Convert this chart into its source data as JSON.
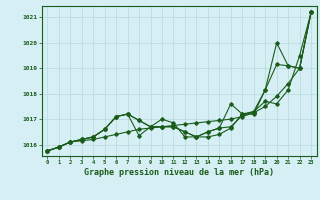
{
  "xlabel": "Graphe pression niveau de la mer (hPa)",
  "background_color": "#d6eff5",
  "grid_color": "#b8d8df",
  "line_color": "#1a5c1a",
  "xlim": [
    -0.5,
    23.5
  ],
  "ylim": [
    1015.55,
    1021.45
  ],
  "yticks": [
    1016,
    1017,
    1018,
    1019,
    1020,
    1021
  ],
  "xticks": [
    0,
    1,
    2,
    3,
    4,
    5,
    6,
    7,
    8,
    9,
    10,
    11,
    12,
    13,
    14,
    15,
    16,
    17,
    18,
    19,
    20,
    21,
    22,
    23
  ],
  "line1": [
    1015.75,
    1015.9,
    1016.1,
    1016.15,
    1016.2,
    1016.3,
    1016.4,
    1016.5,
    1016.6,
    1016.65,
    1016.7,
    1016.75,
    1016.8,
    1016.85,
    1016.9,
    1016.95,
    1017.0,
    1017.1,
    1017.25,
    1017.5,
    1017.9,
    1018.4,
    1019.0,
    1021.2
  ],
  "line2": [
    1015.75,
    1015.9,
    1016.1,
    1016.2,
    1016.3,
    1016.6,
    1017.1,
    1017.2,
    1016.95,
    1016.7,
    1016.7,
    1016.7,
    1016.5,
    1016.3,
    1016.5,
    1016.65,
    1016.7,
    1017.15,
    1017.3,
    1017.7,
    1017.6,
    1018.15,
    1019.5,
    1021.2
  ],
  "line3": [
    1015.75,
    1015.9,
    1016.1,
    1016.2,
    1016.3,
    1016.6,
    1017.1,
    1017.2,
    1016.35,
    1016.7,
    1017.0,
    1016.85,
    1016.3,
    1016.3,
    1016.3,
    1016.4,
    1016.65,
    1017.2,
    1017.2,
    1018.15,
    1019.15,
    1019.1,
    1019.0,
    1021.2
  ],
  "line4": [
    1015.75,
    1015.9,
    1016.1,
    1016.2,
    1016.3,
    1016.6,
    1017.1,
    1017.2,
    1016.95,
    1016.7,
    1016.7,
    1016.7,
    1016.5,
    1016.3,
    1016.5,
    1016.65,
    1017.6,
    1017.2,
    1017.3,
    1018.15,
    1020.0,
    1019.1,
    1019.0,
    1021.2
  ]
}
